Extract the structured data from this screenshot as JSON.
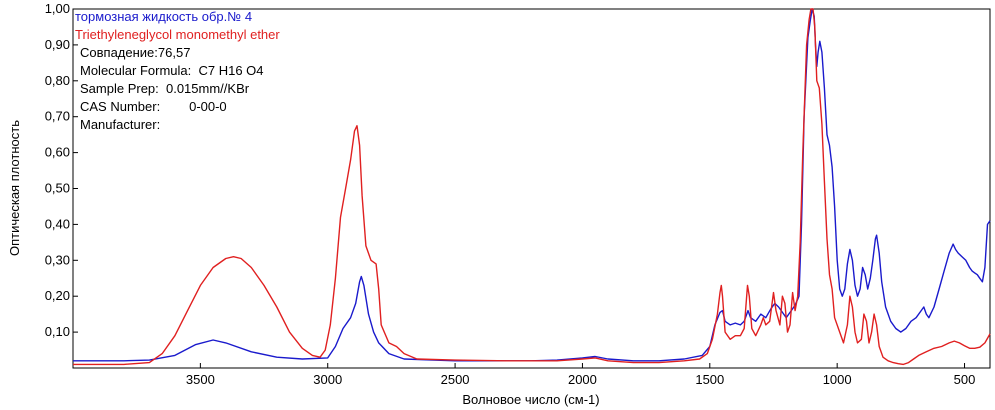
{
  "chart_data": {
    "type": "line",
    "xlabel": "Волновое число (см-1)",
    "ylabel": "Оптическая плотность",
    "xlim": [
      4000,
      400
    ],
    "ylim": [
      0,
      1.0
    ],
    "x_reversed": true,
    "x_ticks": [
      3500,
      3000,
      2500,
      2000,
      1500,
      1000,
      500
    ],
    "y_ticks": [
      0.1,
      0.2,
      0.3,
      0.4,
      0.5,
      0.6,
      0.7,
      0.8,
      0.9,
      1.0
    ],
    "y_tick_labels": [
      "0,10",
      "0,20",
      "0,30",
      "0,40",
      "0,50",
      "0,60",
      "0,70",
      "0,80",
      "0,90",
      "1,00"
    ],
    "grid": false,
    "legend_position": "top-left",
    "series": [
      {
        "name": "тормозная жидкость обр.№ 4",
        "color": "#1a1acc",
        "points": [
          [
            4000,
            0.02
          ],
          [
            3800,
            0.02
          ],
          [
            3700,
            0.022
          ],
          [
            3600,
            0.035
          ],
          [
            3520,
            0.065
          ],
          [
            3450,
            0.078
          ],
          [
            3400,
            0.07
          ],
          [
            3300,
            0.045
          ],
          [
            3200,
            0.03
          ],
          [
            3100,
            0.025
          ],
          [
            3000,
            0.028
          ],
          [
            2970,
            0.06
          ],
          [
            2940,
            0.11
          ],
          [
            2910,
            0.14
          ],
          [
            2890,
            0.18
          ],
          [
            2875,
            0.24
          ],
          [
            2868,
            0.255
          ],
          [
            2858,
            0.23
          ],
          [
            2840,
            0.15
          ],
          [
            2820,
            0.1
          ],
          [
            2800,
            0.07
          ],
          [
            2760,
            0.04
          ],
          [
            2700,
            0.025
          ],
          [
            2500,
            0.02
          ],
          [
            2300,
            0.02
          ],
          [
            2200,
            0.02
          ],
          [
            2100,
            0.022
          ],
          [
            2000,
            0.028
          ],
          [
            1950,
            0.032
          ],
          [
            1900,
            0.025
          ],
          [
            1800,
            0.02
          ],
          [
            1700,
            0.02
          ],
          [
            1600,
            0.025
          ],
          [
            1530,
            0.035
          ],
          [
            1500,
            0.06
          ],
          [
            1480,
            0.12
          ],
          [
            1460,
            0.155
          ],
          [
            1450,
            0.16
          ],
          [
            1440,
            0.13
          ],
          [
            1420,
            0.12
          ],
          [
            1400,
            0.125
          ],
          [
            1380,
            0.12
          ],
          [
            1365,
            0.13
          ],
          [
            1350,
            0.16
          ],
          [
            1340,
            0.14
          ],
          [
            1320,
            0.13
          ],
          [
            1300,
            0.15
          ],
          [
            1280,
            0.14
          ],
          [
            1260,
            0.165
          ],
          [
            1245,
            0.18
          ],
          [
            1230,
            0.17
          ],
          [
            1210,
            0.15
          ],
          [
            1200,
            0.14
          ],
          [
            1180,
            0.16
          ],
          [
            1165,
            0.175
          ],
          [
            1150,
            0.2
          ],
          [
            1140,
            0.4
          ],
          [
            1130,
            0.7
          ],
          [
            1115,
            0.92
          ],
          [
            1105,
            0.97
          ],
          [
            1098,
            1.0
          ],
          [
            1090,
            0.98
          ],
          [
            1085,
            0.9
          ],
          [
            1080,
            0.84
          ],
          [
            1075,
            0.88
          ],
          [
            1068,
            0.91
          ],
          [
            1060,
            0.88
          ],
          [
            1050,
            0.78
          ],
          [
            1040,
            0.65
          ],
          [
            1030,
            0.62
          ],
          [
            1020,
            0.56
          ],
          [
            1010,
            0.45
          ],
          [
            1000,
            0.3
          ],
          [
            990,
            0.22
          ],
          [
            980,
            0.2
          ],
          [
            970,
            0.22
          ],
          [
            960,
            0.29
          ],
          [
            950,
            0.33
          ],
          [
            940,
            0.3
          ],
          [
            930,
            0.23
          ],
          [
            920,
            0.2
          ],
          [
            910,
            0.22
          ],
          [
            900,
            0.28
          ],
          [
            890,
            0.26
          ],
          [
            880,
            0.22
          ],
          [
            870,
            0.25
          ],
          [
            860,
            0.3
          ],
          [
            850,
            0.36
          ],
          [
            845,
            0.37
          ],
          [
            835,
            0.32
          ],
          [
            825,
            0.24
          ],
          [
            810,
            0.17
          ],
          [
            790,
            0.13
          ],
          [
            770,
            0.11
          ],
          [
            750,
            0.1
          ],
          [
            730,
            0.11
          ],
          [
            710,
            0.13
          ],
          [
            690,
            0.14
          ],
          [
            670,
            0.16
          ],
          [
            660,
            0.17
          ],
          [
            650,
            0.15
          ],
          [
            640,
            0.14
          ],
          [
            620,
            0.17
          ],
          [
            600,
            0.22
          ],
          [
            580,
            0.27
          ],
          [
            560,
            0.32
          ],
          [
            545,
            0.345
          ],
          [
            535,
            0.33
          ],
          [
            525,
            0.32
          ],
          [
            510,
            0.31
          ],
          [
            495,
            0.3
          ],
          [
            480,
            0.28
          ],
          [
            470,
            0.27
          ],
          [
            460,
            0.265
          ],
          [
            450,
            0.26
          ],
          [
            440,
            0.25
          ],
          [
            430,
            0.24
          ],
          [
            420,
            0.28
          ],
          [
            410,
            0.4
          ],
          [
            400,
            0.41
          ]
        ]
      },
      {
        "name": "Triethyleneglycol monomethyl ether",
        "color": "#e02020",
        "points": [
          [
            4000,
            0.01
          ],
          [
            3800,
            0.01
          ],
          [
            3700,
            0.015
          ],
          [
            3650,
            0.04
          ],
          [
            3600,
            0.09
          ],
          [
            3550,
            0.16
          ],
          [
            3500,
            0.23
          ],
          [
            3450,
            0.28
          ],
          [
            3400,
            0.305
          ],
          [
            3370,
            0.31
          ],
          [
            3340,
            0.305
          ],
          [
            3300,
            0.28
          ],
          [
            3250,
            0.23
          ],
          [
            3200,
            0.17
          ],
          [
            3150,
            0.1
          ],
          [
            3100,
            0.055
          ],
          [
            3060,
            0.035
          ],
          [
            3030,
            0.03
          ],
          [
            3010,
            0.05
          ],
          [
            2990,
            0.12
          ],
          [
            2970,
            0.25
          ],
          [
            2950,
            0.42
          ],
          [
            2930,
            0.5
          ],
          [
            2910,
            0.58
          ],
          [
            2895,
            0.66
          ],
          [
            2885,
            0.675
          ],
          [
            2875,
            0.62
          ],
          [
            2865,
            0.48
          ],
          [
            2850,
            0.34
          ],
          [
            2830,
            0.3
          ],
          [
            2810,
            0.29
          ],
          [
            2800,
            0.22
          ],
          [
            2790,
            0.12
          ],
          [
            2760,
            0.07
          ],
          [
            2730,
            0.06
          ],
          [
            2700,
            0.04
          ],
          [
            2650,
            0.025
          ],
          [
            2500,
            0.022
          ],
          [
            2300,
            0.02
          ],
          [
            2100,
            0.02
          ],
          [
            2000,
            0.025
          ],
          [
            1950,
            0.028
          ],
          [
            1900,
            0.02
          ],
          [
            1800,
            0.015
          ],
          [
            1700,
            0.015
          ],
          [
            1600,
            0.02
          ],
          [
            1540,
            0.025
          ],
          [
            1510,
            0.04
          ],
          [
            1490,
            0.08
          ],
          [
            1470,
            0.15
          ],
          [
            1460,
            0.21
          ],
          [
            1455,
            0.23
          ],
          [
            1450,
            0.2
          ],
          [
            1440,
            0.1
          ],
          [
            1420,
            0.08
          ],
          [
            1400,
            0.09
          ],
          [
            1380,
            0.09
          ],
          [
            1365,
            0.11
          ],
          [
            1352,
            0.23
          ],
          [
            1345,
            0.2
          ],
          [
            1335,
            0.11
          ],
          [
            1320,
            0.09
          ],
          [
            1300,
            0.12
          ],
          [
            1290,
            0.14
          ],
          [
            1280,
            0.12
          ],
          [
            1265,
            0.13
          ],
          [
            1250,
            0.21
          ],
          [
            1240,
            0.16
          ],
          [
            1225,
            0.12
          ],
          [
            1215,
            0.2
          ],
          [
            1205,
            0.18
          ],
          [
            1195,
            0.1
          ],
          [
            1185,
            0.12
          ],
          [
            1175,
            0.21
          ],
          [
            1165,
            0.16
          ],
          [
            1155,
            0.2
          ],
          [
            1145,
            0.35
          ],
          [
            1135,
            0.6
          ],
          [
            1120,
            0.9
          ],
          [
            1110,
            0.97
          ],
          [
            1103,
            1.0
          ],
          [
            1095,
            1.0
          ],
          [
            1088,
            0.95
          ],
          [
            1080,
            0.8
          ],
          [
            1070,
            0.78
          ],
          [
            1060,
            0.68
          ],
          [
            1050,
            0.52
          ],
          [
            1040,
            0.36
          ],
          [
            1030,
            0.26
          ],
          [
            1020,
            0.22
          ],
          [
            1010,
            0.14
          ],
          [
            990,
            0.1
          ],
          [
            975,
            0.07
          ],
          [
            960,
            0.12
          ],
          [
            950,
            0.2
          ],
          [
            940,
            0.17
          ],
          [
            930,
            0.1
          ],
          [
            920,
            0.07
          ],
          [
            905,
            0.08
          ],
          [
            895,
            0.15
          ],
          [
            885,
            0.13
          ],
          [
            875,
            0.07
          ],
          [
            865,
            0.1
          ],
          [
            855,
            0.15
          ],
          [
            845,
            0.12
          ],
          [
            835,
            0.06
          ],
          [
            820,
            0.03
          ],
          [
            800,
            0.02
          ],
          [
            780,
            0.015
          ],
          [
            760,
            0.012
          ],
          [
            740,
            0.01
          ],
          [
            720,
            0.015
          ],
          [
            700,
            0.025
          ],
          [
            680,
            0.035
          ],
          [
            650,
            0.045
          ],
          [
            620,
            0.055
          ],
          [
            590,
            0.06
          ],
          [
            560,
            0.07
          ],
          [
            540,
            0.075
          ],
          [
            520,
            0.07
          ],
          [
            500,
            0.062
          ],
          [
            480,
            0.055
          ],
          [
            460,
            0.055
          ],
          [
            440,
            0.058
          ],
          [
            420,
            0.07
          ],
          [
            400,
            0.095
          ]
        ]
      }
    ],
    "annotations": [
      "Совпадение:76,57",
      "Molecular Formula:  C7 H16 O4",
      "Sample Prep:  0.015mm//KBr",
      "CAS Number:        0-00-0",
      "Manufacturer:"
    ]
  }
}
